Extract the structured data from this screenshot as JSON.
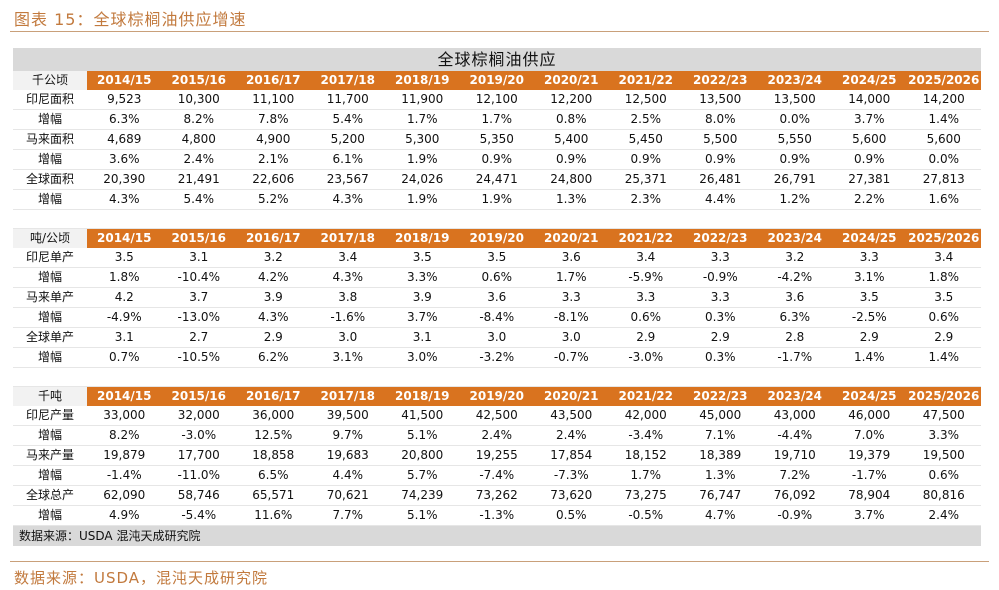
{
  "figure_title": "图表 15：全球棕榈油供应增速",
  "figure_source": "数据来源：USDA，混沌天成研究院",
  "table_title": "全球棕榈油供应",
  "table_note": "数据来源：USDA 混沌天成研究院",
  "columns": [
    "2014/15",
    "2015/16",
    "2016/17",
    "2017/18",
    "2018/19",
    "2019/20",
    "2020/21",
    "2021/22",
    "2022/23",
    "2023/24",
    "2024/25",
    "2025/2026"
  ],
  "sections": [
    {
      "unit": "千公顷",
      "rows": [
        {
          "label": "印尼面积",
          "values": [
            "9,523",
            "10,300",
            "11,100",
            "11,700",
            "11,900",
            "12,100",
            "12,200",
            "12,500",
            "13,500",
            "13,500",
            "14,000",
            "14,200"
          ]
        },
        {
          "label": "增幅",
          "values": [
            "6.3%",
            "8.2%",
            "7.8%",
            "5.4%",
            "1.7%",
            "1.7%",
            "0.8%",
            "2.5%",
            "8.0%",
            "0.0%",
            "3.7%",
            "1.4%"
          ]
        },
        {
          "label": "马来面积",
          "values": [
            "4,689",
            "4,800",
            "4,900",
            "5,200",
            "5,300",
            "5,350",
            "5,400",
            "5,450",
            "5,500",
            "5,550",
            "5,600",
            "5,600"
          ]
        },
        {
          "label": "增幅",
          "values": [
            "3.6%",
            "2.4%",
            "2.1%",
            "6.1%",
            "1.9%",
            "0.9%",
            "0.9%",
            "0.9%",
            "0.9%",
            "0.9%",
            "0.9%",
            "0.0%"
          ]
        },
        {
          "label": "全球面积",
          "values": [
            "20,390",
            "21,491",
            "22,606",
            "23,567",
            "24,026",
            "24,471",
            "24,800",
            "25,371",
            "26,481",
            "26,791",
            "27,381",
            "27,813"
          ]
        },
        {
          "label": "增幅",
          "values": [
            "4.3%",
            "5.4%",
            "5.2%",
            "4.3%",
            "1.9%",
            "1.9%",
            "1.3%",
            "2.3%",
            "4.4%",
            "1.2%",
            "2.2%",
            "1.6%"
          ]
        }
      ]
    },
    {
      "unit": "吨/公顷",
      "rows": [
        {
          "label": "印尼单产",
          "values": [
            "3.5",
            "3.1",
            "3.2",
            "3.4",
            "3.5",
            "3.5",
            "3.6",
            "3.4",
            "3.3",
            "3.2",
            "3.3",
            "3.4"
          ]
        },
        {
          "label": "增幅",
          "values": [
            "1.8%",
            "-10.4%",
            "4.2%",
            "4.3%",
            "3.3%",
            "0.6%",
            "1.7%",
            "-5.9%",
            "-0.9%",
            "-4.2%",
            "3.1%",
            "1.8%"
          ]
        },
        {
          "label": "马来单产",
          "values": [
            "4.2",
            "3.7",
            "3.9",
            "3.8",
            "3.9",
            "3.6",
            "3.3",
            "3.3",
            "3.3",
            "3.6",
            "3.5",
            "3.5"
          ]
        },
        {
          "label": "增幅",
          "values": [
            "-4.9%",
            "-13.0%",
            "4.3%",
            "-1.6%",
            "3.7%",
            "-8.4%",
            "-8.1%",
            "0.6%",
            "0.3%",
            "6.3%",
            "-2.5%",
            "0.6%"
          ]
        },
        {
          "label": "全球单产",
          "values": [
            "3.1",
            "2.7",
            "2.9",
            "3.0",
            "3.1",
            "3.0",
            "3.0",
            "2.9",
            "2.9",
            "2.8",
            "2.9",
            "2.9"
          ]
        },
        {
          "label": "增幅",
          "values": [
            "0.7%",
            "-10.5%",
            "6.2%",
            "3.1%",
            "3.0%",
            "-3.2%",
            "-0.7%",
            "-3.0%",
            "0.3%",
            "-1.7%",
            "1.4%",
            "1.4%"
          ]
        }
      ]
    },
    {
      "unit": "千吨",
      "rows": [
        {
          "label": "印尼产量",
          "values": [
            "33,000",
            "32,000",
            "36,000",
            "39,500",
            "41,500",
            "42,500",
            "43,500",
            "42,000",
            "45,000",
            "43,000",
            "46,000",
            "47,500"
          ]
        },
        {
          "label": "增幅",
          "values": [
            "8.2%",
            "-3.0%",
            "12.5%",
            "9.7%",
            "5.1%",
            "2.4%",
            "2.4%",
            "-3.4%",
            "7.1%",
            "-4.4%",
            "7.0%",
            "3.3%"
          ]
        },
        {
          "label": "马来产量",
          "values": [
            "19,879",
            "17,700",
            "18,858",
            "19,683",
            "20,800",
            "19,255",
            "17,854",
            "18,152",
            "18,389",
            "19,710",
            "19,379",
            "19,500"
          ]
        },
        {
          "label": "增幅",
          "values": [
            "-1.4%",
            "-11.0%",
            "6.5%",
            "4.4%",
            "5.7%",
            "-7.4%",
            "-7.3%",
            "1.7%",
            "1.3%",
            "7.2%",
            "-1.7%",
            "0.6%"
          ]
        },
        {
          "label": "全球总产",
          "values": [
            "62,090",
            "58,746",
            "65,571",
            "70,621",
            "74,239",
            "73,262",
            "73,620",
            "73,275",
            "76,747",
            "76,092",
            "78,904",
            "80,816"
          ]
        },
        {
          "label": "增幅",
          "values": [
            "4.9%",
            "-5.4%",
            "11.6%",
            "7.7%",
            "5.1%",
            "-1.3%",
            "0.5%",
            "-0.5%",
            "4.7%",
            "-0.9%",
            "3.7%",
            "2.4%"
          ]
        }
      ]
    }
  ]
}
